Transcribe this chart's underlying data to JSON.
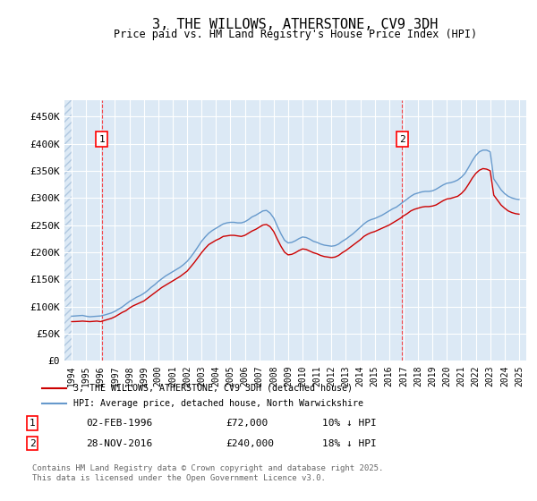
{
  "title": "3, THE WILLOWS, ATHERSTONE, CV9 3DH",
  "subtitle": "Price paid vs. HM Land Registry's House Price Index (HPI)",
  "bg_color": "#dce9f5",
  "plot_bg_color": "#dce9f5",
  "hatch_color": "#b0c8e0",
  "grid_color": "#ffffff",
  "red_line_color": "#cc0000",
  "blue_line_color": "#6699cc",
  "sale1_x": 1996.09,
  "sale1_y": 72000,
  "sale1_label": "1",
  "sale2_x": 2016.91,
  "sale2_y": 240000,
  "sale2_label": "2",
  "ylim_min": 0,
  "ylim_max": 480000,
  "xlim_min": 1993.5,
  "xlim_max": 2025.5,
  "yticks": [
    0,
    50000,
    100000,
    150000,
    200000,
    250000,
    300000,
    350000,
    400000,
    450000
  ],
  "ytick_labels": [
    "£0",
    "£50K",
    "£100K",
    "£150K",
    "£200K",
    "£250K",
    "£300K",
    "£350K",
    "£400K",
    "£450K"
  ],
  "xticks": [
    1994,
    1995,
    1996,
    1997,
    1998,
    1999,
    2000,
    2001,
    2002,
    2003,
    2004,
    2005,
    2006,
    2007,
    2008,
    2009,
    2010,
    2011,
    2012,
    2013,
    2014,
    2015,
    2016,
    2017,
    2018,
    2019,
    2020,
    2021,
    2022,
    2023,
    2024,
    2025
  ],
  "legend_red_label": "3, THE WILLOWS, ATHERSTONE, CV9 3DH (detached house)",
  "legend_blue_label": "HPI: Average price, detached house, North Warwickshire",
  "annotation1_date": "02-FEB-1996",
  "annotation1_price": "£72,000",
  "annotation1_hpi": "10% ↓ HPI",
  "annotation2_date": "28-NOV-2016",
  "annotation2_price": "£240,000",
  "annotation2_hpi": "18% ↓ HPI",
  "footer": "Contains HM Land Registry data © Crown copyright and database right 2025.\nThis data is licensed under the Open Government Licence v3.0.",
  "hpi_data_x": [
    1994,
    1994.25,
    1994.5,
    1994.75,
    1995,
    1995.25,
    1995.5,
    1995.75,
    1996,
    1996.25,
    1996.5,
    1996.75,
    1997,
    1997.25,
    1997.5,
    1997.75,
    1998,
    1998.25,
    1998.5,
    1998.75,
    1999,
    1999.25,
    1999.5,
    1999.75,
    2000,
    2000.25,
    2000.5,
    2000.75,
    2001,
    2001.25,
    2001.5,
    2001.75,
    2002,
    2002.25,
    2002.5,
    2002.75,
    2003,
    2003.25,
    2003.5,
    2003.75,
    2004,
    2004.25,
    2004.5,
    2004.75,
    2005,
    2005.25,
    2005.5,
    2005.75,
    2006,
    2006.25,
    2006.5,
    2006.75,
    2007,
    2007.25,
    2007.5,
    2007.75,
    2008,
    2008.25,
    2008.5,
    2008.75,
    2009,
    2009.25,
    2009.5,
    2009.75,
    2010,
    2010.25,
    2010.5,
    2010.75,
    2011,
    2011.25,
    2011.5,
    2011.75,
    2012,
    2012.25,
    2012.5,
    2012.75,
    2013,
    2013.25,
    2013.5,
    2013.75,
    2014,
    2014.25,
    2014.5,
    2014.75,
    2015,
    2015.25,
    2015.5,
    2015.75,
    2016,
    2016.25,
    2016.5,
    2016.75,
    2017,
    2017.25,
    2017.5,
    2017.75,
    2018,
    2018.25,
    2018.5,
    2018.75,
    2019,
    2019.25,
    2019.5,
    2019.75,
    2020,
    2020.25,
    2020.5,
    2020.75,
    2021,
    2021.25,
    2021.5,
    2021.75,
    2022,
    2022.25,
    2022.5,
    2022.75,
    2023,
    2023.25,
    2023.5,
    2023.75,
    2024,
    2024.25,
    2024.5,
    2024.75,
    2025
  ],
  "hpi_data_y": [
    82000,
    82500,
    83000,
    83500,
    82000,
    81000,
    81500,
    82000,
    82500,
    84000,
    86000,
    88000,
    91000,
    95000,
    99000,
    104000,
    109000,
    113000,
    117000,
    120000,
    124000,
    129000,
    135000,
    140000,
    146000,
    151000,
    156000,
    160000,
    164000,
    168000,
    172000,
    177000,
    183000,
    191000,
    200000,
    210000,
    220000,
    228000,
    235000,
    240000,
    244000,
    248000,
    252000,
    254000,
    255000,
    255000,
    254000,
    254000,
    256000,
    260000,
    265000,
    268000,
    272000,
    276000,
    277000,
    272000,
    263000,
    248000,
    234000,
    222000,
    217000,
    218000,
    221000,
    225000,
    228000,
    227000,
    224000,
    220000,
    218000,
    215000,
    213000,
    212000,
    211000,
    212000,
    215000,
    220000,
    224000,
    229000,
    234000,
    240000,
    246000,
    252000,
    257000,
    260000,
    262000,
    265000,
    268000,
    272000,
    276000,
    280000,
    283000,
    288000,
    293000,
    298000,
    303000,
    307000,
    309000,
    311000,
    312000,
    312000,
    313000,
    316000,
    320000,
    324000,
    327000,
    328000,
    330000,
    333000,
    338000,
    345000,
    356000,
    368000,
    378000,
    385000,
    388000,
    388000,
    385000,
    335000,
    325000,
    315000,
    308000,
    303000,
    300000,
    298000,
    297000
  ],
  "red_data_x": [
    1994,
    1994.25,
    1994.5,
    1994.75,
    1995,
    1995.25,
    1995.5,
    1995.75,
    1996,
    1996.25,
    1996.5,
    1996.75,
    1997,
    1997.25,
    1997.5,
    1997.75,
    1998,
    1998.25,
    1998.5,
    1998.75,
    1999,
    1999.25,
    1999.5,
    1999.75,
    2000,
    2000.25,
    2000.5,
    2000.75,
    2001,
    2001.25,
    2001.5,
    2001.75,
    2002,
    2002.25,
    2002.5,
    2002.75,
    2003,
    2003.25,
    2003.5,
    2003.75,
    2004,
    2004.25,
    2004.5,
    2004.75,
    2005,
    2005.25,
    2005.5,
    2005.75,
    2006,
    2006.25,
    2006.5,
    2006.75,
    2007,
    2007.25,
    2007.5,
    2007.75,
    2008,
    2008.25,
    2008.5,
    2008.75,
    2009,
    2009.25,
    2009.5,
    2009.75,
    2010,
    2010.25,
    2010.5,
    2010.75,
    2011,
    2011.25,
    2011.5,
    2011.75,
    2012,
    2012.25,
    2012.5,
    2012.75,
    2013,
    2013.25,
    2013.5,
    2013.75,
    2014,
    2014.25,
    2014.5,
    2014.75,
    2015,
    2015.25,
    2015.5,
    2015.75,
    2016,
    2016.25,
    2016.5,
    2016.75,
    2017,
    2017.25,
    2017.5,
    2017.75,
    2018,
    2018.25,
    2018.5,
    2018.75,
    2019,
    2019.25,
    2019.5,
    2019.75,
    2020,
    2020.25,
    2020.5,
    2020.75,
    2021,
    2021.25,
    2021.5,
    2021.75,
    2022,
    2022.25,
    2022.5,
    2022.75,
    2023,
    2023.25,
    2023.5,
    2023.75,
    2024,
    2024.25,
    2024.5,
    2024.75,
    2025
  ],
  "red_data_y": [
    72000,
    72200,
    72500,
    73000,
    72500,
    72000,
    72500,
    73000,
    72000,
    74000,
    76000,
    78000,
    81000,
    85000,
    89000,
    92000,
    97000,
    101000,
    104000,
    107000,
    110000,
    115000,
    120000,
    125000,
    130000,
    135000,
    139000,
    143000,
    147000,
    151000,
    155000,
    160000,
    165000,
    173000,
    181000,
    190000,
    199000,
    207000,
    214000,
    218000,
    222000,
    225000,
    229000,
    230000,
    231000,
    231000,
    230000,
    229000,
    231000,
    235000,
    239000,
    242000,
    246000,
    250000,
    251000,
    247000,
    238000,
    224000,
    211000,
    200000,
    195000,
    196000,
    199000,
    203000,
    206000,
    205000,
    202000,
    199000,
    197000,
    194000,
    192000,
    191000,
    190000,
    191000,
    194000,
    199000,
    203000,
    208000,
    213000,
    218000,
    223000,
    229000,
    233000,
    236000,
    238000,
    241000,
    244000,
    247000,
    250000,
    254000,
    258000,
    262000,
    267000,
    271000,
    276000,
    279000,
    281000,
    283000,
    284000,
    284000,
    285000,
    287000,
    291000,
    295000,
    298000,
    299000,
    301000,
    303000,
    308000,
    315000,
    325000,
    336000,
    345000,
    351000,
    354000,
    353000,
    350000,
    305000,
    296000,
    287000,
    281000,
    276000,
    273000,
    271000,
    270000
  ]
}
